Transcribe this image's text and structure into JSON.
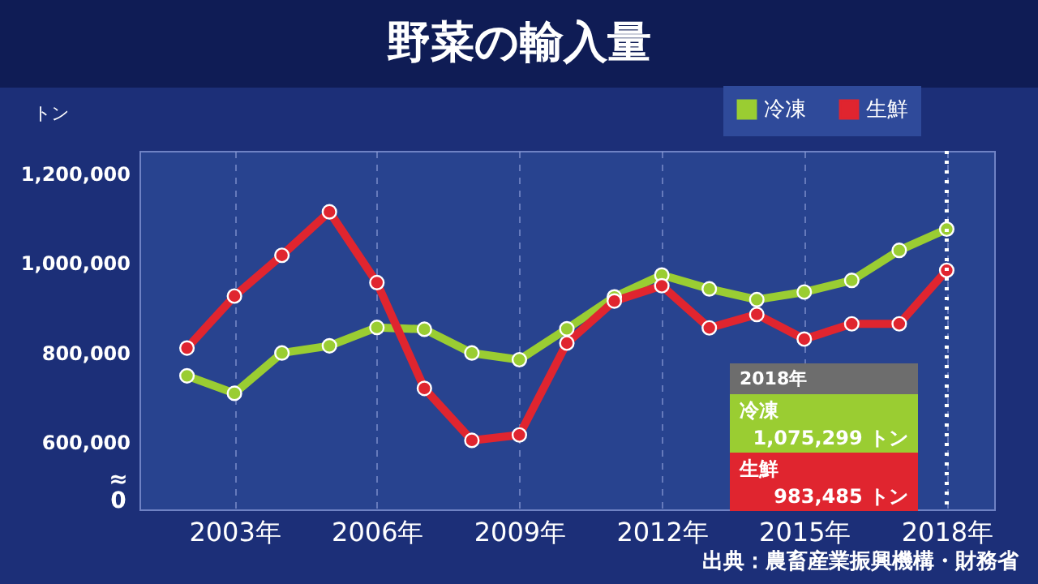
{
  "chart_data": {
    "type": "line",
    "title": "野菜の輸入量",
    "ylabel": "トン",
    "x": [
      2002,
      2003,
      2004,
      2005,
      2006,
      2007,
      2008,
      2009,
      2010,
      2011,
      2012,
      2013,
      2014,
      2015,
      2016,
      2017,
      2018
    ],
    "series": [
      {
        "name": "冷凍",
        "color": "#9acd32",
        "values": [
          748000,
          709000,
          799000,
          815000,
          856000,
          852000,
          799000,
          784000,
          853000,
          924000,
          973000,
          942000,
          918000,
          935000,
          961000,
          1028000,
          1075299
        ]
      },
      {
        "name": "生鮮",
        "color": "#e0252f",
        "values": [
          810000,
          926000,
          1017000,
          1114000,
          956000,
          720000,
          604000,
          616000,
          821000,
          915000,
          949000,
          855000,
          885000,
          830000,
          864000,
          864000,
          983485
        ]
      }
    ],
    "xlim": [
      2001,
      2019
    ],
    "xticks": [
      {
        "value": 2003,
        "label": "2003年"
      },
      {
        "value": 2006,
        "label": "2006年"
      },
      {
        "value": 2009,
        "label": "2009年"
      },
      {
        "value": 2012,
        "label": "2012年"
      },
      {
        "value": 2015,
        "label": "2015年"
      },
      {
        "value": 2018,
        "label": "2018年"
      }
    ],
    "ylim": [
      450000,
      1250000
    ],
    "yticks": [
      {
        "value": 600000,
        "label": "600,000"
      },
      {
        "value": 800000,
        "label": "800,000"
      },
      {
        "value": 1000000,
        "label": "1,000,000"
      },
      {
        "value": 1200000,
        "label": "1,200,000"
      }
    ],
    "ref_lines": [
      {
        "axis": "x",
        "value": 2018,
        "label": null,
        "color": "#ffffff",
        "line_style": "dotted"
      }
    ],
    "annotations": [
      "2018年",
      "冷凍",
      "1,075,299 トン",
      "生鮮",
      "983,485 トン",
      "≈ 0",
      "出典：農畜産業振興機構・財務省"
    ],
    "grid": "x",
    "legend": "top right",
    "marker": "circle",
    "line_style": "solid"
  }
}
